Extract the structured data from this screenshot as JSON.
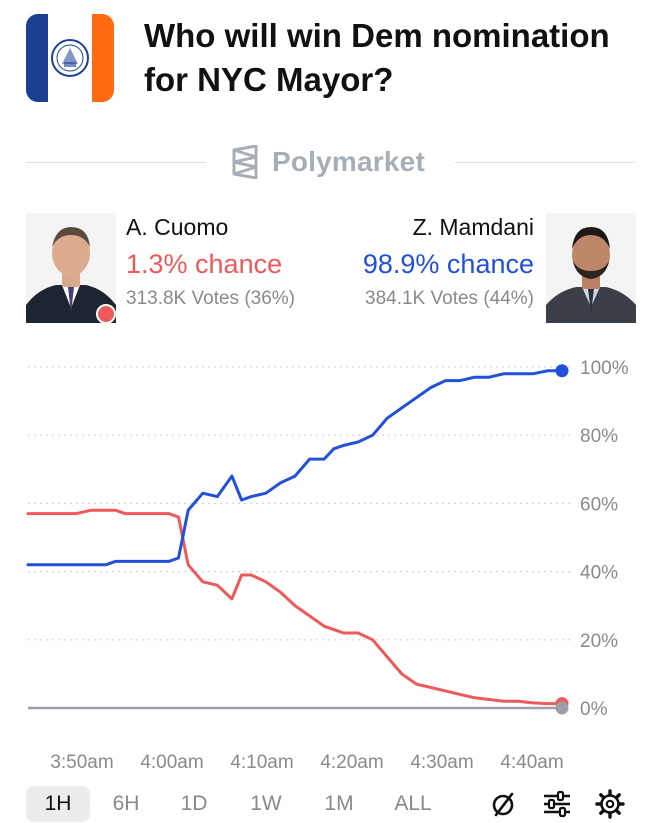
{
  "header": {
    "title": "Who will win Dem nomination for NYC Mayor?"
  },
  "brand": {
    "name": "Polymarket"
  },
  "candidates": {
    "left": {
      "name": "A. Cuomo",
      "chance": "1.3% chance",
      "votes": "313.8K Votes (36%)",
      "color": "#ee5a5a"
    },
    "right": {
      "name": "Z. Mamdani",
      "chance": "98.9% chance",
      "votes": "384.1K Votes (44%)",
      "color": "#2350d9"
    }
  },
  "chart_data": {
    "type": "line",
    "x_ticks": [
      "3:50am",
      "4:00am",
      "4:10am",
      "4:20am",
      "4:30am",
      "4:40am"
    ],
    "y_ticks": [
      "100%",
      "80%",
      "60%",
      "40%",
      "20%",
      "0%"
    ],
    "ylim": [
      0,
      100
    ],
    "grid": true,
    "x": [
      0,
      4,
      8,
      10,
      13,
      16,
      18,
      20,
      22,
      24,
      25,
      27,
      29,
      31,
      33,
      36,
      39,
      42,
      44,
      46,
      49,
      52,
      55,
      58,
      61,
      63,
      65,
      68,
      71,
      74,
      77,
      80,
      83,
      86,
      89,
      92,
      95,
      98,
      101,
      104,
      107,
      110
    ],
    "series": [
      {
        "name": "Z. Mamdani",
        "color": "#2350d9",
        "values": [
          42,
          42,
          42,
          42,
          42,
          42,
          43,
          43,
          43,
          43,
          43,
          43,
          43,
          44,
          58,
          63,
          62,
          68,
          61,
          62,
          63,
          66,
          68,
          73,
          73,
          76,
          77,
          78,
          80,
          85,
          88,
          91,
          94,
          96,
          96,
          97,
          97,
          98,
          98,
          98,
          98.9,
          98.9
        ]
      },
      {
        "name": "A. Cuomo",
        "color": "#ee5a5a",
        "values": [
          57,
          57,
          57,
          57,
          58,
          58,
          58,
          57,
          57,
          57,
          57,
          57,
          57,
          56,
          42,
          37,
          36,
          32,
          39,
          39,
          37,
          34,
          30,
          27,
          24,
          23,
          22,
          22,
          20,
          15,
          10,
          7,
          6,
          5,
          4,
          3,
          2.5,
          2,
          2,
          1.5,
          1.3,
          1.3
        ]
      }
    ]
  },
  "range_tabs": [
    "1H",
    "6H",
    "1D",
    "1W",
    "1M",
    "ALL"
  ],
  "active_tab": "1H"
}
